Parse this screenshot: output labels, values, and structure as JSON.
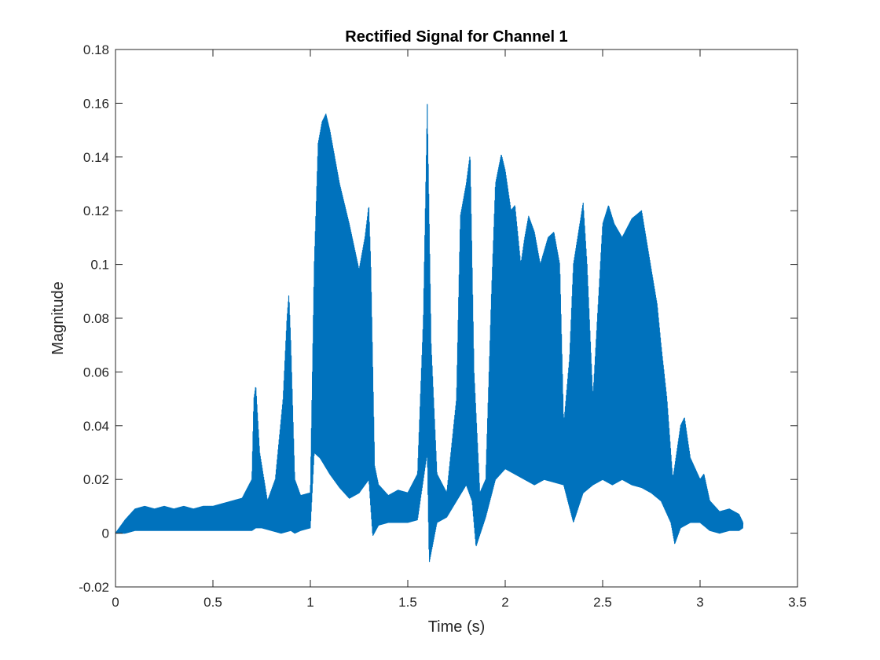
{
  "chart_data": {
    "type": "line",
    "title": "Rectified Signal for Channel 1",
    "xlabel": "Time (s)",
    "ylabel": "Magnitude",
    "xlim": [
      0,
      3.5
    ],
    "ylim": [
      -0.02,
      0.18
    ],
    "xticks": [
      0,
      0.5,
      1,
      1.5,
      2,
      2.5,
      3,
      3.5
    ],
    "xtick_labels": [
      "0",
      "0.5",
      "1",
      "1.5",
      "2",
      "2.5",
      "3",
      "3.5"
    ],
    "yticks": [
      -0.02,
      0,
      0.02,
      0.04,
      0.06,
      0.08,
      0.1,
      0.12,
      0.14,
      0.16,
      0.18
    ],
    "ytick_labels": [
      "-0.02",
      "0",
      "0.02",
      "0.04",
      "0.06",
      "0.08",
      "0.1",
      "0.12",
      "0.14",
      "0.16",
      "0.18"
    ],
    "grid": false,
    "line_color": "#0072BD",
    "series": [
      {
        "upper_envelope": {
          "x": [
            0,
            0.05,
            0.1,
            0.15,
            0.2,
            0.25,
            0.3,
            0.35,
            0.4,
            0.45,
            0.5,
            0.55,
            0.6,
            0.65,
            0.7,
            0.71,
            0.72,
            0.74,
            0.78,
            0.82,
            0.86,
            0.88,
            0.89,
            0.9,
            0.92,
            0.95,
            1.0,
            1.02,
            1.04,
            1.06,
            1.08,
            1.1,
            1.15,
            1.2,
            1.25,
            1.28,
            1.3,
            1.31,
            1.33,
            1.35,
            1.4,
            1.45,
            1.5,
            1.55,
            1.58,
            1.6,
            1.62,
            1.65,
            1.7,
            1.75,
            1.77,
            1.8,
            1.82,
            1.84,
            1.87,
            1.9,
            1.93,
            1.95,
            1.98,
            2.0,
            2.03,
            2.05,
            2.08,
            2.1,
            2.12,
            2.15,
            2.18,
            2.2,
            2.22,
            2.25,
            2.28,
            2.3,
            2.33,
            2.35,
            2.4,
            2.42,
            2.45,
            2.5,
            2.53,
            2.56,
            2.6,
            2.65,
            2.7,
            2.75,
            2.78,
            2.8,
            2.83,
            2.86,
            2.9,
            2.92,
            2.95,
            3.0,
            3.02,
            3.05,
            3.1,
            3.15,
            3.2,
            3.22
          ],
          "y": [
            0.0,
            0.005,
            0.009,
            0.01,
            0.009,
            0.01,
            0.009,
            0.01,
            0.009,
            0.01,
            0.01,
            0.011,
            0.012,
            0.013,
            0.02,
            0.05,
            0.055,
            0.03,
            0.012,
            0.02,
            0.05,
            0.08,
            0.089,
            0.07,
            0.02,
            0.014,
            0.015,
            0.1,
            0.145,
            0.153,
            0.156,
            0.15,
            0.13,
            0.115,
            0.098,
            0.11,
            0.122,
            0.1,
            0.025,
            0.018,
            0.014,
            0.016,
            0.015,
            0.022,
            0.08,
            0.16,
            0.07,
            0.022,
            0.015,
            0.05,
            0.118,
            0.13,
            0.141,
            0.06,
            0.015,
            0.02,
            0.09,
            0.13,
            0.141,
            0.135,
            0.12,
            0.122,
            0.1,
            0.11,
            0.118,
            0.112,
            0.1,
            0.105,
            0.11,
            0.112,
            0.1,
            0.04,
            0.065,
            0.1,
            0.123,
            0.1,
            0.05,
            0.115,
            0.122,
            0.115,
            0.11,
            0.117,
            0.12,
            0.098,
            0.085,
            0.07,
            0.05,
            0.02,
            0.04,
            0.043,
            0.028,
            0.02,
            0.022,
            0.012,
            0.008,
            0.009,
            0.007,
            0.004
          ]
        },
        "lower_envelope": {
          "x": [
            0,
            0.05,
            0.1,
            0.2,
            0.3,
            0.4,
            0.5,
            0.6,
            0.7,
            0.72,
            0.75,
            0.8,
            0.85,
            0.9,
            0.92,
            0.95,
            1.0,
            1.02,
            1.05,
            1.1,
            1.15,
            1.2,
            1.25,
            1.3,
            1.32,
            1.35,
            1.4,
            1.5,
            1.55,
            1.6,
            1.61,
            1.65,
            1.7,
            1.75,
            1.8,
            1.83,
            1.85,
            1.9,
            1.95,
            2.0,
            2.05,
            2.1,
            2.15,
            2.2,
            2.25,
            2.3,
            2.35,
            2.4,
            2.45,
            2.5,
            2.55,
            2.6,
            2.65,
            2.7,
            2.75,
            2.8,
            2.85,
            2.87,
            2.9,
            2.95,
            3.0,
            3.05,
            3.1,
            3.15,
            3.2,
            3.22
          ],
          "y": [
            0.0,
            0.0,
            0.001,
            0.001,
            0.001,
            0.001,
            0.001,
            0.001,
            0.001,
            0.002,
            0.002,
            0.001,
            0.0,
            0.001,
            0.0,
            0.001,
            0.002,
            0.03,
            0.028,
            0.022,
            0.017,
            0.013,
            0.015,
            0.02,
            -0.001,
            0.003,
            0.004,
            0.004,
            0.005,
            0.03,
            -0.011,
            0.004,
            0.006,
            0.012,
            0.018,
            0.012,
            -0.005,
            0.006,
            0.02,
            0.024,
            0.022,
            0.02,
            0.018,
            0.02,
            0.019,
            0.018,
            0.004,
            0.015,
            0.018,
            0.02,
            0.018,
            0.02,
            0.018,
            0.017,
            0.015,
            0.012,
            0.004,
            -0.004,
            0.002,
            0.004,
            0.004,
            0.001,
            0.0,
            0.001,
            0.001,
            0.002
          ]
        }
      }
    ]
  }
}
